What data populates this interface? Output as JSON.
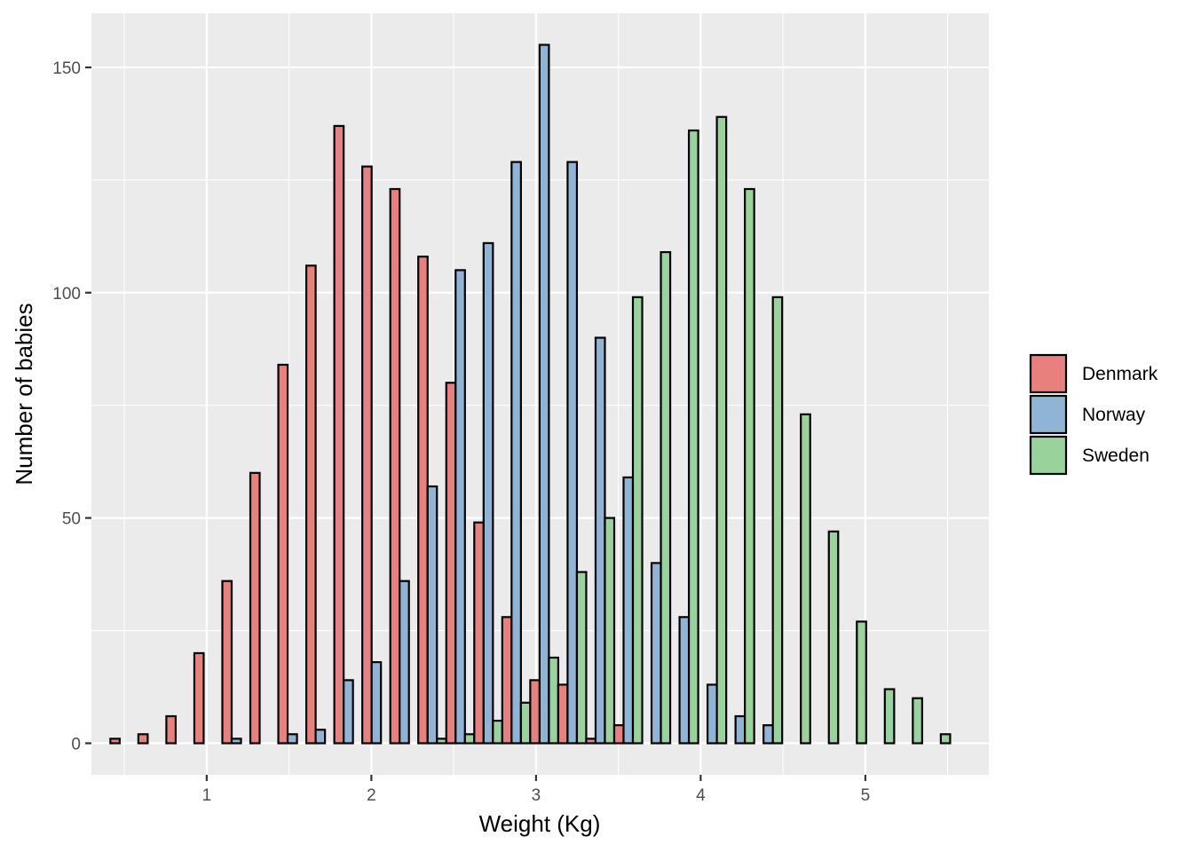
{
  "chart_data": {
    "type": "bar",
    "xlabel": "Weight (Kg)",
    "ylabel": "Number of babies",
    "xlim": [
      0.3,
      5.75
    ],
    "ylim": [
      -7,
      162
    ],
    "x_ticks": [
      1,
      2,
      3,
      4,
      5
    ],
    "x_tick_labels": [
      "1",
      "2",
      "3",
      "4",
      "5"
    ],
    "y_ticks": [
      0,
      50,
      100,
      150
    ],
    "y_tick_labels": [
      "0",
      "50",
      "100",
      "150"
    ],
    "bin_width": 0.17,
    "bins": [
      0.5,
      0.67,
      0.84,
      1.01,
      1.18,
      1.35,
      1.52,
      1.69,
      1.86,
      2.03,
      2.2,
      2.37,
      2.54,
      2.71,
      2.88,
      3.05,
      3.22,
      3.39,
      3.56,
      3.73,
      3.9,
      4.07,
      4.24,
      4.41,
      4.58,
      4.75,
      4.92,
      5.09,
      5.26,
      5.43
    ],
    "grid": true,
    "legend": {
      "position": "right"
    },
    "series": [
      {
        "name": "Denmark",
        "color": "#e8807e",
        "values": [
          1,
          2,
          6,
          20,
          36,
          60,
          84,
          106,
          137,
          128,
          123,
          108,
          80,
          49,
          28,
          14,
          13,
          1,
          4,
          0,
          0,
          0,
          0,
          0,
          0,
          0,
          0,
          0,
          0,
          0
        ]
      },
      {
        "name": "Norway",
        "color": "#90b4d6",
        "values": [
          0,
          0,
          0,
          0,
          1,
          0,
          2,
          3,
          14,
          18,
          36,
          57,
          105,
          111,
          129,
          155,
          129,
          90,
          59,
          40,
          28,
          13,
          6,
          4,
          0,
          0,
          0,
          0,
          0,
          0
        ]
      },
      {
        "name": "Sweden",
        "color": "#9ad29b",
        "values": [
          0,
          0,
          0,
          0,
          0,
          0,
          0,
          0,
          0,
          0,
          0,
          1,
          2,
          5,
          9,
          19,
          38,
          50,
          99,
          109,
          136,
          139,
          123,
          99,
          73,
          47,
          27,
          12,
          10,
          2
        ]
      }
    ]
  }
}
